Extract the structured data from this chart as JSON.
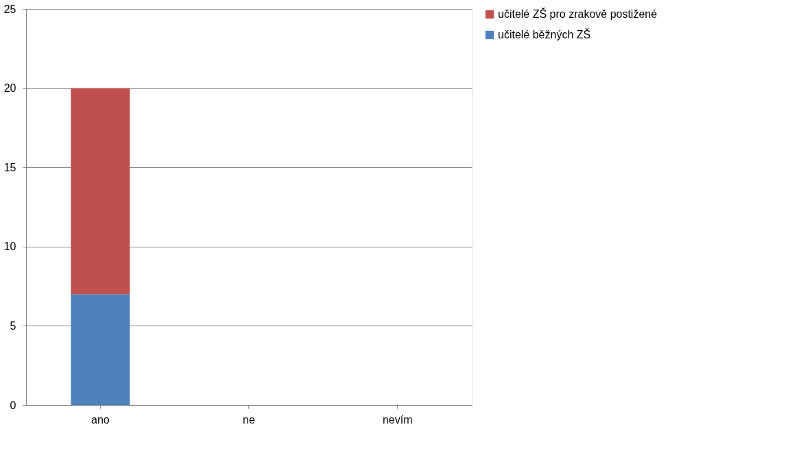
{
  "chart_data": {
    "type": "bar",
    "categories": [
      "ano",
      "ne",
      "nevím"
    ],
    "stacked": true,
    "series": [
      {
        "name": "učitelé běžných ZŠ",
        "color": "#4f81bd",
        "values": [
          7,
          0,
          0
        ]
      },
      {
        "name": "učitelé ZŠ pro zrakově postižené",
        "color": "#c0504d",
        "values": [
          13,
          0,
          0
        ]
      }
    ],
    "ylim": [
      0,
      25
    ],
    "yticks": [
      0,
      5,
      10,
      15,
      20,
      25
    ],
    "grid": "y",
    "legend": "right"
  }
}
